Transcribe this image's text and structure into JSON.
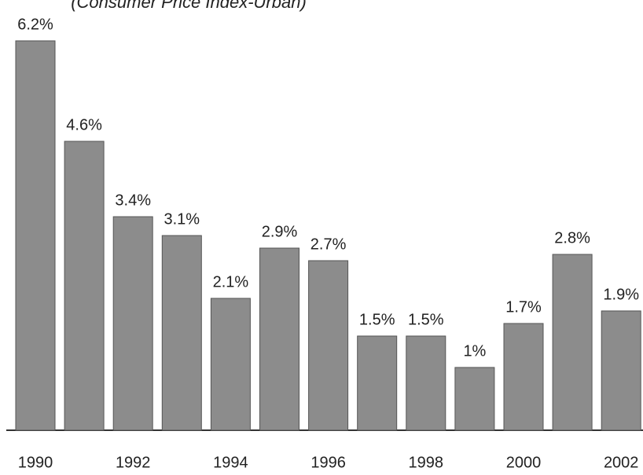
{
  "chart_data": {
    "type": "bar",
    "subtitle": "(Consumer Price Index-Urban)",
    "categories": [
      "1990",
      null,
      "1992",
      null,
      "1994",
      null,
      "1996",
      null,
      "1998",
      null,
      "2000",
      null,
      "2002"
    ],
    "values": [
      6.2,
      4.6,
      3.4,
      3.1,
      2.1,
      2.9,
      2.7,
      1.5,
      1.5,
      1,
      1.7,
      2.8,
      1.9
    ],
    "value_labels": [
      "6.2%",
      "4.6%",
      "3.4%",
      "3.1%",
      "2.1%",
      "2.9%",
      "2.7%",
      "1.5%",
      "1.5%",
      "1%",
      "1.7%",
      "2.8%",
      "1.9%"
    ],
    "color": "#8c8c8c"
  }
}
